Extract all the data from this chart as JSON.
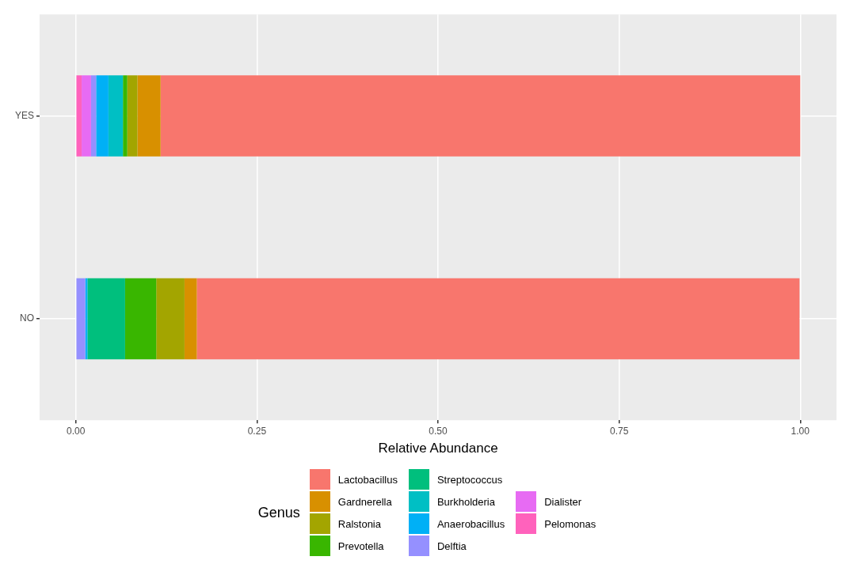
{
  "chart_data": {
    "type": "bar",
    "orientation": "horizontal",
    "stacked": true,
    "xlabel": "Relative Abundance",
    "legend_title": "Genus",
    "legend": "bottom",
    "grid": true,
    "categories": [
      "YES",
      "NO"
    ],
    "xlim": [
      -0.05,
      1.05
    ],
    "xticks": [
      {
        "value": 0,
        "label": "0.00"
      },
      {
        "value": 0.25,
        "label": "0.25"
      },
      {
        "value": 0.5,
        "label": "0.50"
      },
      {
        "value": 0.75,
        "label": "0.75"
      },
      {
        "value": 1,
        "label": "1.00"
      }
    ],
    "series": [
      {
        "name": "Pelomonas",
        "color": "#ff62bc",
        "values": [
          0.008,
          null
        ]
      },
      {
        "name": "Dialister",
        "color": "#e76bf3",
        "values": [
          0.013,
          0
        ]
      },
      {
        "name": "Delftia",
        "color": "#9590ff",
        "values": [
          0.007,
          0.013
        ]
      },
      {
        "name": "Anaerobacillus",
        "color": "#00b0f6",
        "values": [
          0.017,
          0.003
        ]
      },
      {
        "name": "Burkholderia",
        "color": "#00bfc4",
        "values": [
          0.02,
          0
        ]
      },
      {
        "name": "Streptococcus",
        "color": "#00bf7d",
        "values": [
          0,
          0.052
        ]
      },
      {
        "name": "Prevotella",
        "color": "#39b600",
        "values": [
          0.006,
          0.043
        ]
      },
      {
        "name": "Ralstonia",
        "color": "#a3a500",
        "values": [
          0.014,
          0.039
        ]
      },
      {
        "name": "Gardnerella",
        "color": "#d89000",
        "values": [
          0.032,
          0.017
        ]
      },
      {
        "name": "Lactobacillus",
        "color": "#f8766d",
        "values": [
          0.883,
          0.832
        ]
      }
    ]
  }
}
